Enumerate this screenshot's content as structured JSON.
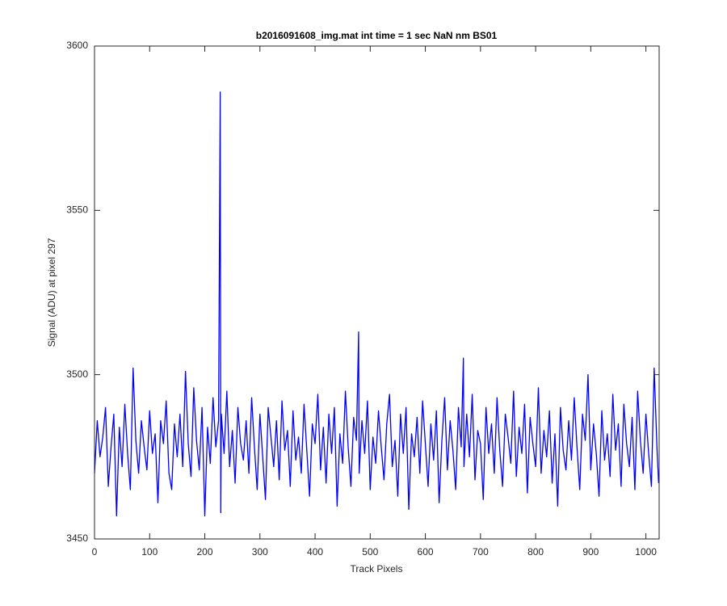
{
  "chart_data": {
    "type": "line",
    "title": "b2016091608_img.mat int time = 1 sec  NaN nm BS01",
    "xlabel": "Track Pixels",
    "ylabel": "Signal (ADU) at pixel 297",
    "xlim": [
      0,
      1024
    ],
    "xticks": [
      0,
      100,
      200,
      300,
      400,
      500,
      600,
      700,
      800,
      900,
      1000
    ],
    "ylim": [
      3450,
      3600
    ],
    "yticks": [
      3450,
      3500,
      3550,
      3600
    ],
    "x": [
      0,
      5,
      10,
      15,
      20,
      25,
      30,
      35,
      40,
      45,
      50,
      55,
      60,
      65,
      70,
      75,
      80,
      85,
      90,
      95,
      100,
      105,
      110,
      115,
      120,
      125,
      130,
      135,
      140,
      145,
      150,
      155,
      160,
      165,
      170,
      175,
      180,
      185,
      190,
      195,
      200,
      205,
      210,
      215,
      220,
      225,
      228,
      229,
      230,
      235,
      240,
      245,
      250,
      255,
      260,
      265,
      270,
      275,
      280,
      285,
      290,
      295,
      300,
      305,
      310,
      315,
      320,
      325,
      330,
      335,
      340,
      345,
      350,
      355,
      360,
      365,
      370,
      375,
      380,
      385,
      390,
      395,
      400,
      405,
      410,
      415,
      420,
      425,
      430,
      435,
      440,
      445,
      450,
      455,
      460,
      465,
      470,
      475,
      479,
      480,
      485,
      490,
      495,
      500,
      505,
      510,
      515,
      520,
      525,
      530,
      535,
      540,
      545,
      550,
      555,
      560,
      565,
      570,
      575,
      580,
      585,
      590,
      595,
      600,
      605,
      610,
      615,
      620,
      625,
      630,
      635,
      640,
      645,
      650,
      655,
      660,
      665,
      669,
      670,
      675,
      680,
      685,
      690,
      695,
      700,
      705,
      710,
      715,
      720,
      725,
      730,
      735,
      740,
      745,
      750,
      755,
      760,
      765,
      770,
      775,
      780,
      785,
      790,
      795,
      800,
      805,
      810,
      815,
      820,
      825,
      830,
      835,
      840,
      845,
      850,
      855,
      860,
      865,
      870,
      875,
      880,
      885,
      890,
      895,
      900,
      905,
      910,
      915,
      920,
      925,
      930,
      935,
      940,
      945,
      950,
      955,
      960,
      965,
      970,
      975,
      980,
      985,
      990,
      995,
      1000,
      1005,
      1010,
      1015,
      1020,
      1023
    ],
    "series": [
      {
        "color": "#0000ff",
        "values": [
          3470,
          3486,
          3475,
          3481,
          3490,
          3466,
          3478,
          3488,
          3457,
          3484,
          3472,
          3491,
          3476,
          3465,
          3502,
          3480,
          3470,
          3486,
          3478,
          3471,
          3489,
          3476,
          3482,
          3461,
          3486,
          3479,
          3492,
          3470,
          3465,
          3485,
          3475,
          3488,
          3472,
          3501,
          3479,
          3469,
          3496,
          3480,
          3471,
          3490,
          3457,
          3484,
          3473,
          3493,
          3478,
          3486,
          3586,
          3458,
          3488,
          3476,
          3495,
          3472,
          3483,
          3467,
          3490,
          3479,
          3474,
          3486,
          3470,
          3493,
          3478,
          3465,
          3488,
          3475,
          3462,
          3490,
          3481,
          3472,
          3486,
          3468,
          3492,
          3477,
          3483,
          3466,
          3489,
          3474,
          3481,
          3470,
          3491,
          3477,
          3463,
          3485,
          3479,
          3494,
          3471,
          3484,
          3467,
          3488,
          3476,
          3490,
          3460,
          3482,
          3473,
          3495,
          3478,
          3466,
          3487,
          3480,
          3513,
          3470,
          3486,
          3476,
          3492,
          3465,
          3481,
          3473,
          3489,
          3478,
          3468,
          3485,
          3494,
          3472,
          3480,
          3463,
          3488,
          3476,
          3490,
          3459,
          3482,
          3475,
          3487,
          3470,
          3492,
          3479,
          3466,
          3485,
          3474,
          3489,
          3461,
          3480,
          3493,
          3471,
          3486,
          3477,
          3465,
          3490,
          3478,
          3505,
          3472,
          3488,
          3475,
          3494,
          3468,
          3483,
          3479,
          3462,
          3490,
          3476,
          3485,
          3470,
          3493,
          3477,
          3466,
          3488,
          3481,
          3473,
          3495,
          3469,
          3484,
          3476,
          3491,
          3464,
          3487,
          3479,
          3472,
          3496,
          3470,
          3483,
          3475,
          3489,
          3467,
          3482,
          3460,
          3490,
          3477,
          3471,
          3486,
          3474,
          3493,
          3478,
          3465,
          3488,
          3480,
          3500,
          3471,
          3485,
          3476,
          3463,
          3489,
          3474,
          3482,
          3469,
          3494,
          3477,
          3485,
          3466,
          3491,
          3479,
          3472,
          3487,
          3465,
          3495,
          3480,
          3470,
          3488,
          3476,
          3466,
          3502,
          3478,
          3467
        ]
      }
    ]
  }
}
